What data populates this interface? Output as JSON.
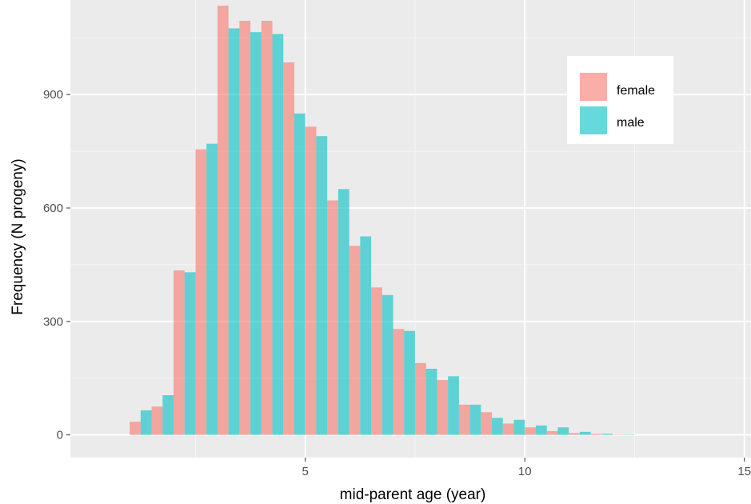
{
  "chart_data": {
    "type": "bar",
    "subtype": "dodged-histogram",
    "xlabel": "mid-parent age (year)",
    "ylabel": "Frequency (N progeny)",
    "xlim": [
      -0.35,
      15.15
    ],
    "ylim": [
      -60,
      1150
    ],
    "x_ticks": [
      5,
      10,
      15
    ],
    "y_ticks": [
      0,
      300,
      600,
      900
    ],
    "x_tick_labels": [
      "5",
      "10",
      "15"
    ],
    "y_tick_labels": [
      "0",
      "300",
      "600",
      "900"
    ],
    "grid": true,
    "legend": {
      "position": "top-right"
    },
    "bin_width": 0.5,
    "x": [
      1.25,
      1.75,
      2.25,
      2.75,
      3.25,
      3.75,
      4.25,
      4.75,
      5.25,
      5.75,
      6.25,
      6.75,
      7.25,
      7.75,
      8.25,
      8.75,
      9.25,
      9.75,
      10.25,
      10.75,
      11.25,
      11.75,
      12.25
    ],
    "series": [
      {
        "name": "female",
        "color": "#f8766d",
        "values": [
          35,
          75,
          435,
          755,
          1135,
          1095,
          1095,
          985,
          815,
          620,
          500,
          390,
          280,
          190,
          145,
          80,
          60,
          30,
          20,
          10,
          5,
          3,
          1
        ]
      },
      {
        "name": "male",
        "color": "#00bfc4",
        "values": [
          65,
          105,
          430,
          770,
          1075,
          1065,
          1060,
          850,
          790,
          650,
          525,
          370,
          275,
          175,
          155,
          80,
          45,
          40,
          25,
          20,
          8,
          3,
          1
        ]
      }
    ]
  }
}
